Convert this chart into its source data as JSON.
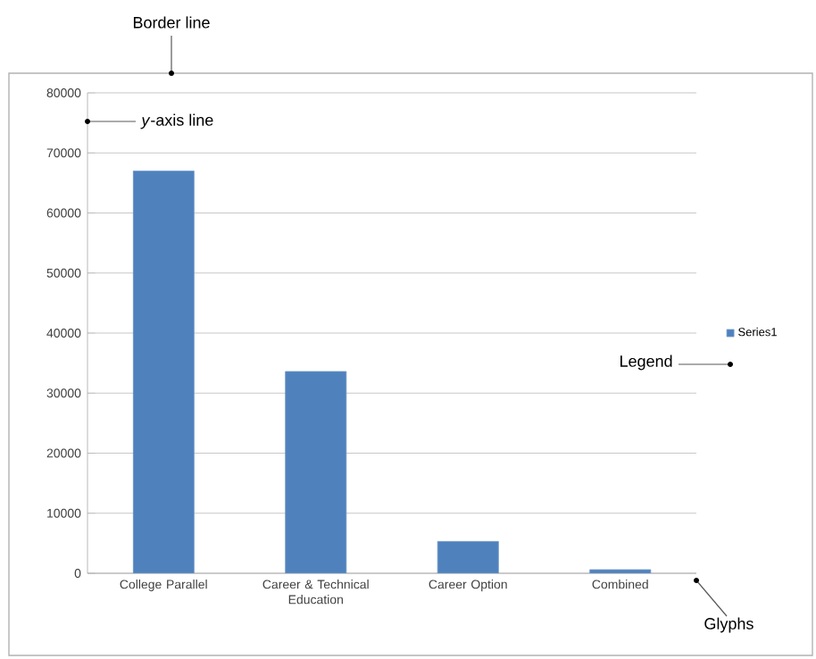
{
  "chart_data": {
    "type": "bar",
    "categories": [
      "College Parallel",
      "Career & Technical Education",
      "Career Option",
      "Combined"
    ],
    "series": [
      {
        "name": "Series1",
        "color": "#4f81bd",
        "values": [
          67000,
          33600,
          5300,
          600
        ]
      }
    ],
    "ylim": [
      0,
      80000
    ],
    "yticks": [
      0,
      10000,
      20000,
      30000,
      40000,
      50000,
      60000,
      70000,
      80000
    ],
    "grid": "y",
    "legend": "right",
    "annotations": [
      "Border line",
      "*y*-axis line",
      "Legend",
      "Glyphs"
    ]
  }
}
